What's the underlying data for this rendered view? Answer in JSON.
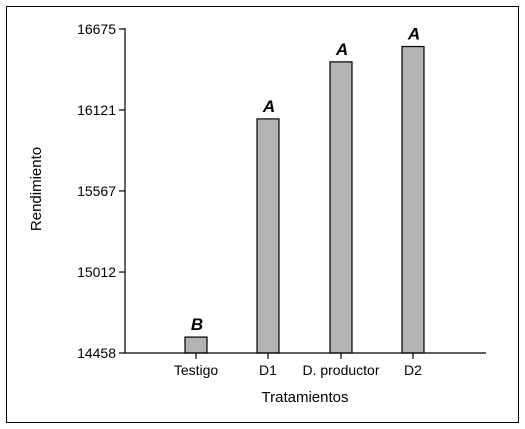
{
  "chart_data": {
    "type": "bar",
    "title": "",
    "xlabel": "Tratamientos",
    "ylabel": "Rendimiento",
    "categories": [
      "Testigo",
      "D1",
      "D. productor",
      "D2"
    ],
    "values": [
      14567,
      16060,
      16450,
      16555
    ],
    "group_letters": [
      "B",
      "A",
      "A",
      "A"
    ],
    "yticks": [
      14458,
      15012,
      15567,
      16121,
      16675
    ],
    "ylim": [
      14458,
      16675
    ],
    "grid": false,
    "bar_color": "#b4b4b4",
    "bar_edge_color": "#000000"
  }
}
